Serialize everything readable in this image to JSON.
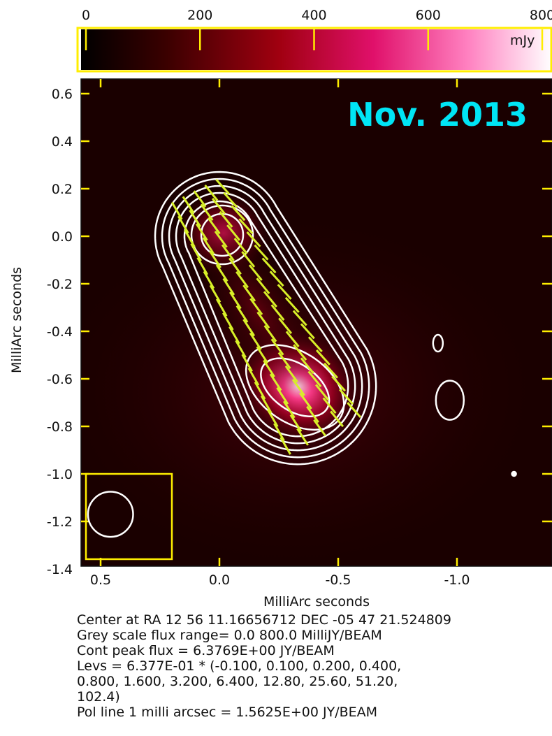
{
  "chart_data": {
    "type": "heatmap",
    "title": "Nov. 2013",
    "xlabel": "MilliArc seconds",
    "ylabel": "MilliArc seconds",
    "xlim": [
      0.55,
      -1.4
    ],
    "ylim": [
      -1.4,
      0.65
    ],
    "x_reversed": true,
    "x_ticks": [
      0.5,
      0.0,
      -0.5,
      -1.0
    ],
    "x_tick_labels": [
      "0.5",
      "0.0",
      "-0.5",
      "-1.0"
    ],
    "y_ticks": [
      0.6,
      0.4,
      0.2,
      0.0,
      -0.2,
      -0.4,
      -0.6,
      -0.8,
      -1.0,
      -1.2,
      -1.4
    ],
    "y_tick_labels": [
      "0.6",
      "0.4",
      "0.2",
      "0.0",
      "-0.2",
      "-0.4",
      "-0.6",
      "-0.8",
      "-1.0",
      "-1.2",
      "-1.4"
    ],
    "colorbar": {
      "range": [
        0,
        800
      ],
      "ticks": [
        0,
        200,
        400,
        600,
        800
      ],
      "tick_labels": [
        "0",
        "200",
        "400",
        "600",
        "800"
      ],
      "unit": "mJy",
      "colors": [
        "#000000",
        "#3a0000",
        "#a00010",
        "#e0106a",
        "#ff80c0",
        "#ffffff"
      ]
    },
    "components": [
      {
        "x": 0.0,
        "y": 0.0,
        "peak_mjy": 300
      },
      {
        "x": -0.33,
        "y": -0.63,
        "peak_mjy": 800
      }
    ],
    "isolated_contours": [
      {
        "x": -0.92,
        "y": -0.45
      },
      {
        "x": -0.97,
        "y": -0.69
      },
      {
        "x": -1.24,
        "y": -1.0
      }
    ],
    "beam": {
      "x": 0.37,
      "y": -1.17,
      "diameter": 0.2
    },
    "colors": {
      "contour": "#ffffff",
      "polarization": "#d8f028",
      "frame": "#ffee00",
      "title": "#00e5f5"
    }
  },
  "caption": {
    "center": "Center at RA 12 56 11.16656712  DEC -05 47 21.524809",
    "grey_scale": "Grey scale flux range= 0.0 800.0 MilliJY/BEAM",
    "cont_peak": "Cont peak flux =  6.3769E+00 JY/BEAM",
    "levs_1": "Levs = 6.377E-01 * (-0.100, 0.100, 0.200, 0.400,",
    "levs_2": "0.800, 1.600, 3.200, 6.400, 12.80, 25.60, 51.20,",
    "levs_3": "102.4)",
    "pol_line": "Pol line 1 milli arcsec =  1.5625E+00 JY/BEAM"
  }
}
